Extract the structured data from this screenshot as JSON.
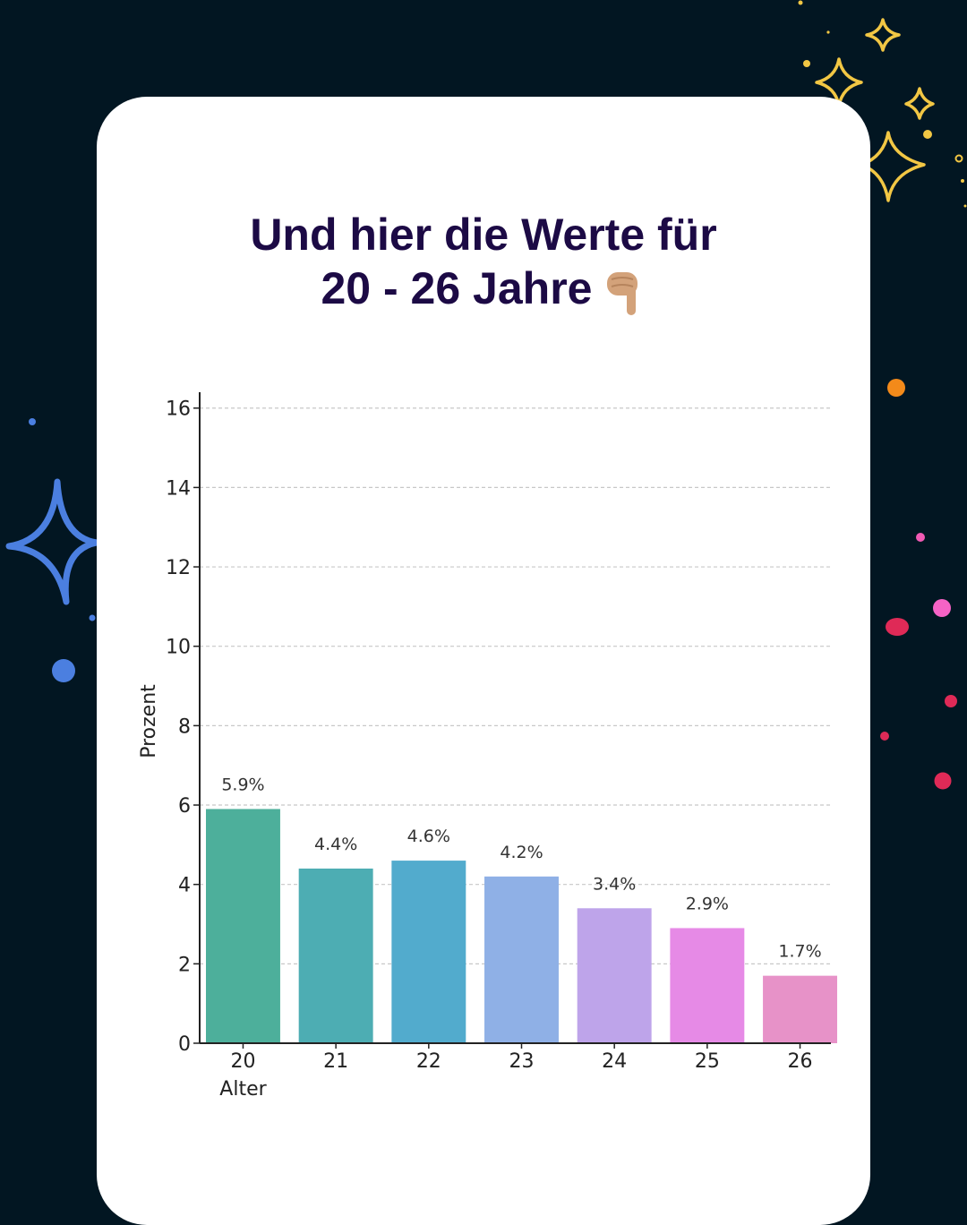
{
  "title": {
    "line1": "Und hier die Werte für",
    "line2": "20 - 26 Jahre"
  },
  "icons": {
    "pointer": "backhand-index-pointing-down-icon"
  },
  "chart_data": {
    "type": "bar",
    "categories": [
      "20",
      "21",
      "22",
      "23",
      "24",
      "25",
      "26"
    ],
    "values": [
      5.9,
      4.4,
      4.6,
      4.2,
      3.4,
      2.9,
      1.7
    ],
    "data_labels": [
      "5.9%",
      "4.4%",
      "4.6%",
      "4.2%",
      "3.4%",
      "2.9%",
      "1.7%"
    ],
    "colors": [
      "#4daf9b",
      "#4dadb3",
      "#52abcd",
      "#8fb0e6",
      "#bea4ea",
      "#e68ae6",
      "#e792c8"
    ],
    "xlabel": "Alter",
    "ylabel": "Prozent",
    "ylim": [
      0,
      16.4
    ],
    "yticks": [
      0,
      2,
      4,
      6,
      8,
      10,
      12,
      14,
      16
    ],
    "grid": true,
    "legend": "none"
  }
}
